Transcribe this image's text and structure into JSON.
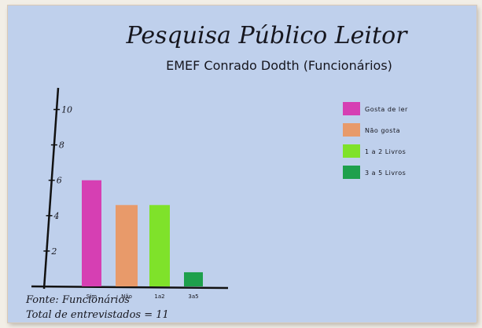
{
  "poster": {
    "title": "Pesquisa Público Leitor",
    "subtitle": "EMEF Conrado Dodth (Funcionários)",
    "source_note": "Fonte: Funcionários",
    "total_note": "Total de entrevistados = 11"
  },
  "chart_data": {
    "type": "bar",
    "title": "",
    "xlabel": "",
    "ylabel": "",
    "categories": [
      "Sim",
      "Não",
      "1a2",
      "3a5"
    ],
    "values": [
      6,
      4.6,
      4.6,
      0.8
    ],
    "ylim": [
      0,
      11
    ],
    "yticks": [
      2,
      4,
      6,
      8,
      10
    ],
    "bar_colors": [
      "#d63fb3",
      "#e89a6a",
      "#7fe22a",
      "#1ea04c"
    ],
    "legend_position": "top-right",
    "grid": false,
    "legend": [
      {
        "label": "Gosta de ler",
        "color": "#d63fb3"
      },
      {
        "label": "Não gosta",
        "color": "#e89a6a"
      },
      {
        "label": "1 a 2 Livros",
        "color": "#7fe22a"
      },
      {
        "label": "3 a 5 Livros",
        "color": "#1ea04c"
      }
    ]
  }
}
